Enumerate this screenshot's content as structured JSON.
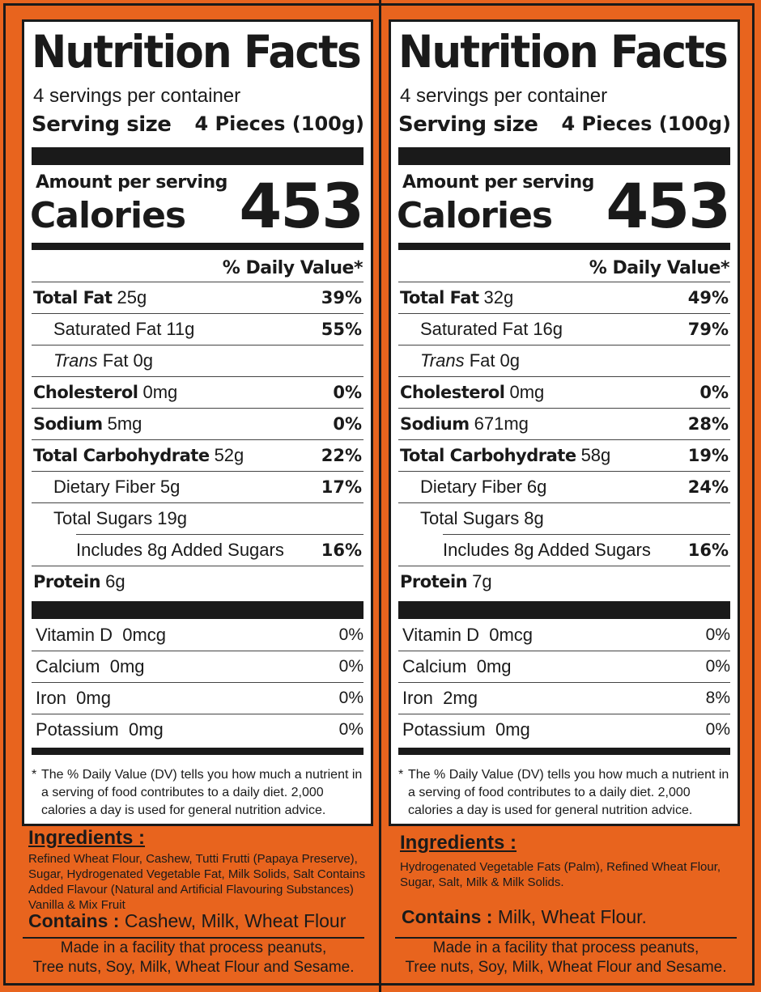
{
  "labels": [
    {
      "title": "Nutrition Facts",
      "servings_per_container": "4 servings per container",
      "serving_size_label": "Serving size",
      "serving_size_value": "4 Pieces (100g)",
      "amount_per_serving": "Amount per serving",
      "calories_label": "Calories",
      "calories_value": "453",
      "daily_value_header": "% Daily Value*",
      "nutrients": [
        {
          "name": "Total Fat",
          "amount": "25g",
          "pct": "39%"
        },
        {
          "name": "Saturated Fat",
          "amount": "11g",
          "pct": "55%"
        },
        {
          "name_italic": "Trans",
          "name": " Fat",
          "amount": "0g",
          "pct": ""
        },
        {
          "name": "Cholesterol",
          "amount": "0mg",
          "pct": "0%"
        },
        {
          "name": "Sodium",
          "amount": "5mg",
          "pct": "0%"
        },
        {
          "name": "Total Carbohydrate",
          "amount": "52g",
          "pct": "22%"
        },
        {
          "name": "Dietary Fiber",
          "amount": "5g",
          "pct": "17%"
        },
        {
          "name": "Total Sugars",
          "amount": "19g",
          "pct": ""
        },
        {
          "name": "Includes 8g Added Sugars",
          "amount": "",
          "pct": "16%"
        },
        {
          "name": "Protein",
          "amount": "6g",
          "pct": ""
        }
      ],
      "vitamins": [
        {
          "name": "Vitamin D",
          "amount": "0mcg",
          "pct": "0%"
        },
        {
          "name": "Calcium",
          "amount": "0mg",
          "pct": "0%"
        },
        {
          "name": "Iron",
          "amount": "0mg",
          "pct": "0%"
        },
        {
          "name": "Potassium",
          "amount": "0mg",
          "pct": "0%"
        }
      ],
      "footnote_star": "*",
      "footnote": "The % Daily Value (DV) tells you how much a nutrient in a serving of food contributes to a daily diet. 2,000 calories a day is used for general nutrition advice.",
      "ingredients_title": "Ingredients :",
      "ingredients_text": "Refined Wheat Flour, Cashew, Tutti Frutti (Papaya Preserve), Sugar, Hydrogenated Vegetable Fat, Milk Solids, Salt Contains Added Flavour (Natural and Artificial Flavouring Substances) Vanilla & Mix Fruit",
      "contains_label": "Contains :",
      "contains_text": "Cashew, Milk, Wheat Flour",
      "facility_line1": "Made in a facility that process peanuts,",
      "facility_line2": "Tree nuts, Soy, Milk, Wheat Flour and Sesame."
    },
    {
      "title": "Nutrition Facts",
      "servings_per_container": "4 servings per container",
      "serving_size_label": "Serving size",
      "serving_size_value": "4 Pieces (100g)",
      "amount_per_serving": "Amount per serving",
      "calories_label": "Calories",
      "calories_value": "453",
      "daily_value_header": "% Daily Value*",
      "nutrients": [
        {
          "name": "Total Fat",
          "amount": "32g",
          "pct": "49%"
        },
        {
          "name": "Saturated Fat",
          "amount": "16g",
          "pct": "79%"
        },
        {
          "name_italic": "Trans",
          "name": " Fat",
          "amount": "0g",
          "pct": ""
        },
        {
          "name": "Cholesterol",
          "amount": "0mg",
          "pct": "0%"
        },
        {
          "name": "Sodium",
          "amount": "671mg",
          "pct": "28%"
        },
        {
          "name": "Total Carbohydrate",
          "amount": "58g",
          "pct": "19%"
        },
        {
          "name": "Dietary Fiber",
          "amount": "6g",
          "pct": "24%"
        },
        {
          "name": "Total Sugars",
          "amount": "8g",
          "pct": ""
        },
        {
          "name": "Includes 8g Added Sugars",
          "amount": "",
          "pct": "16%"
        },
        {
          "name": "Protein",
          "amount": "7g",
          "pct": ""
        }
      ],
      "vitamins": [
        {
          "name": "Vitamin D",
          "amount": "0mcg",
          "pct": "0%"
        },
        {
          "name": "Calcium",
          "amount": "0mg",
          "pct": "0%"
        },
        {
          "name": "Iron",
          "amount": "2mg",
          "pct": "8%"
        },
        {
          "name": "Potassium",
          "amount": "0mg",
          "pct": "0%"
        }
      ],
      "footnote_star": "*",
      "footnote": "The % Daily Value (DV) tells you how much a nutrient in a serving of food contributes to a daily diet. 2,000 calories a day is used for general nutrition advice.",
      "ingredients_title": "Ingredients :",
      "ingredients_text": "Hydrogenated Vegetable Fats (Palm), Refined Wheat Flour, Sugar, Salt, Milk & Milk Solids.",
      "contains_label": "Contains :",
      "contains_text": "Milk, Wheat Flour.",
      "facility_line1": "Made in a facility that process peanuts,",
      "facility_line2": "Tree nuts, Soy, Milk, Wheat Flour and Sesame."
    }
  ],
  "colors": {
    "background": "#e8641e",
    "ink": "#1a1a1a",
    "panel": "#ffffff"
  }
}
